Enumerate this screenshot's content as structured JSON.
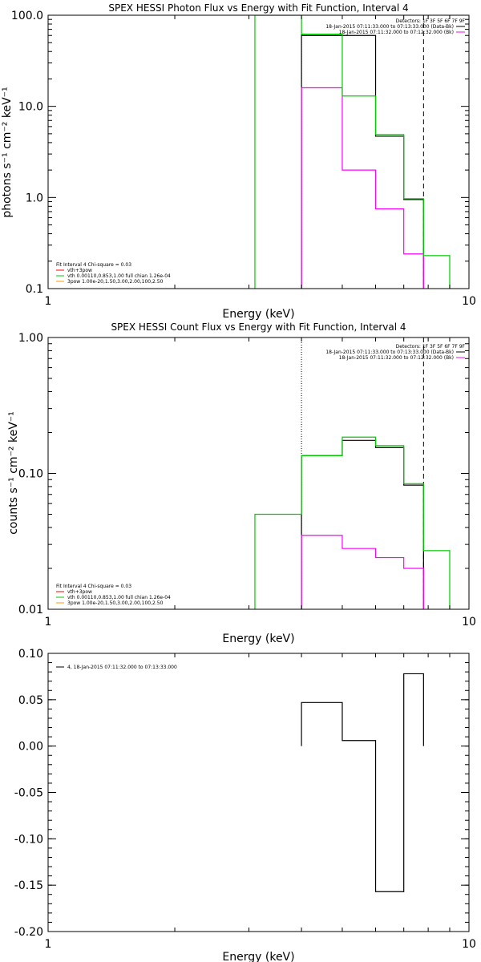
{
  "chart_data": [
    {
      "type": "line",
      "title": "SPEX HESSI Photon Flux vs Energy with Fit Function, Interval 4",
      "xlabel": "Energy (keV)",
      "ylabel": "photons s⁻¹ cm⁻² keV⁻¹",
      "xscale": "log",
      "yscale": "log",
      "xlim": [
        1,
        10
      ],
      "ylim": [
        0.1,
        100
      ],
      "x_ticks": [
        "1",
        "10"
      ],
      "y_ticks": [
        "0.1",
        "1.0",
        "10.0",
        "100.0"
      ],
      "detectors": {
        "header": "Detectors: 1F 3F 5F 6F 7F 9F",
        "lines": [
          {
            "text": "18-Jan-2015 07:11:33.000 to 07:13:33.000 (Data-Bk)",
            "color": "#000000"
          },
          {
            "text": "18-Jan-2015 07:11:32.000 to 07:12:32.000 (Bk)",
            "color": "#ff00ff"
          }
        ]
      },
      "legend": {
        "header": "Fit Interval  4   Chi-square = 0.03",
        "items": [
          {
            "text": "vth+3pow",
            "color": "#ff0000"
          },
          {
            "text": "vth 0.00110,0.853,1.00  full chian 1.26e-04",
            "color": "#00cc00"
          },
          {
            "text": "3pow 1.00e-20,1.50,3.00,2.00,100,2.50",
            "color": "#ff9900"
          }
        ]
      },
      "vlines": [
        {
          "x": 4.0,
          "style": "dotted",
          "color": "#000000"
        },
        {
          "x": 7.8,
          "style": "dashed",
          "color": "#000000"
        }
      ],
      "series": [
        {
          "role": "data",
          "color": "#000000",
          "edges": [
            4.0,
            5.0,
            6.0,
            7.0,
            7.8
          ],
          "values": [
            60,
            60,
            4.7,
            0.95
          ]
        },
        {
          "role": "background",
          "color": "#ff00ff",
          "edges": [
            4.0,
            5.0,
            6.0,
            7.0,
            7.8
          ],
          "values": [
            16,
            2.0,
            0.75,
            0.24
          ]
        },
        {
          "role": "model",
          "color": "#00cc00",
          "edges": [
            3.1,
            4.0,
            5.0,
            6.0,
            7.0,
            7.8,
            9.0
          ],
          "values": [
            100,
            62,
            13,
            4.9,
            0.97,
            0.23
          ]
        }
      ]
    },
    {
      "type": "line",
      "title": "SPEX HESSI Count Flux vs Energy with Fit Function, Interval 4",
      "xlabel": "Energy (keV)",
      "ylabel": "counts s⁻¹ cm⁻² keV⁻¹",
      "xscale": "log",
      "yscale": "log",
      "xlim": [
        1,
        10
      ],
      "ylim": [
        0.01,
        1
      ],
      "x_ticks": [
        "1",
        "10"
      ],
      "y_ticks": [
        "0.01",
        "0.10",
        "1.00"
      ],
      "detectors": {
        "header": "Detectors: 1F 3F 5F 6F 7F 9F",
        "lines": [
          {
            "text": "18-Jan-2015 07:11:33.000 to 07:13:33.000 (Data-Bk)",
            "color": "#000000"
          },
          {
            "text": "18-Jan-2015 07:11:32.000 to 07:12:32.000 (Bk)",
            "color": "#ff00ff"
          }
        ]
      },
      "legend": {
        "header": "Fit Interval  4   Chi-square = 0.03",
        "items": [
          {
            "text": "vth+3pow",
            "color": "#ff0000"
          },
          {
            "text": "vth 0.00110,0.853,1.00  full chian 1.26e-04",
            "color": "#00cc00"
          },
          {
            "text": "3pow 1.00e-20,1.50,3.00,2.00,100,2.50",
            "color": "#ff9900"
          }
        ]
      },
      "vlines": [
        {
          "x": 4.0,
          "style": "dotted",
          "color": "#000000"
        },
        {
          "x": 7.8,
          "style": "dashed",
          "color": "#000000"
        }
      ],
      "series": [
        {
          "role": "data",
          "color": "#000000",
          "edges": [
            4.0,
            5.0,
            6.0,
            7.0,
            7.8
          ],
          "values": [
            0.135,
            0.175,
            0.155,
            0.082
          ]
        },
        {
          "role": "background",
          "color": "#ff00ff",
          "edges": [
            4.0,
            5.0,
            6.0,
            7.0,
            7.8
          ],
          "values": [
            0.035,
            0.028,
            0.024,
            0.02
          ]
        },
        {
          "role": "model",
          "color": "#00cc00",
          "edges": [
            3.1,
            4.0,
            5.0,
            6.0,
            7.0,
            7.8,
            9.0
          ],
          "values": [
            0.05,
            0.135,
            0.185,
            0.16,
            0.084,
            0.027
          ]
        }
      ]
    },
    {
      "type": "line",
      "title": "",
      "xlabel": "Energy (keV)",
      "ylabel": "",
      "xscale": "log",
      "yscale": "linear",
      "xlim": [
        1,
        10
      ],
      "ylim": [
        -0.2,
        0.1
      ],
      "x_ticks": [
        "1",
        "10"
      ],
      "y_ticks": [
        "-0.20",
        "-0.15",
        "-0.10",
        "-0.05",
        "0.00",
        "0.05",
        "0.10"
      ],
      "legend": {
        "header": "",
        "items": [
          {
            "text": "4, 18-Jan-2015 07:11:32.000 to 07:13:33.000",
            "color": "#000000"
          }
        ]
      },
      "series": [
        {
          "role": "residuals",
          "color": "#000000",
          "edges": [
            4.0,
            5.0,
            6.0,
            7.0,
            7.8
          ],
          "values": [
            0.047,
            0.006,
            -0.157,
            0.078
          ]
        }
      ]
    }
  ]
}
